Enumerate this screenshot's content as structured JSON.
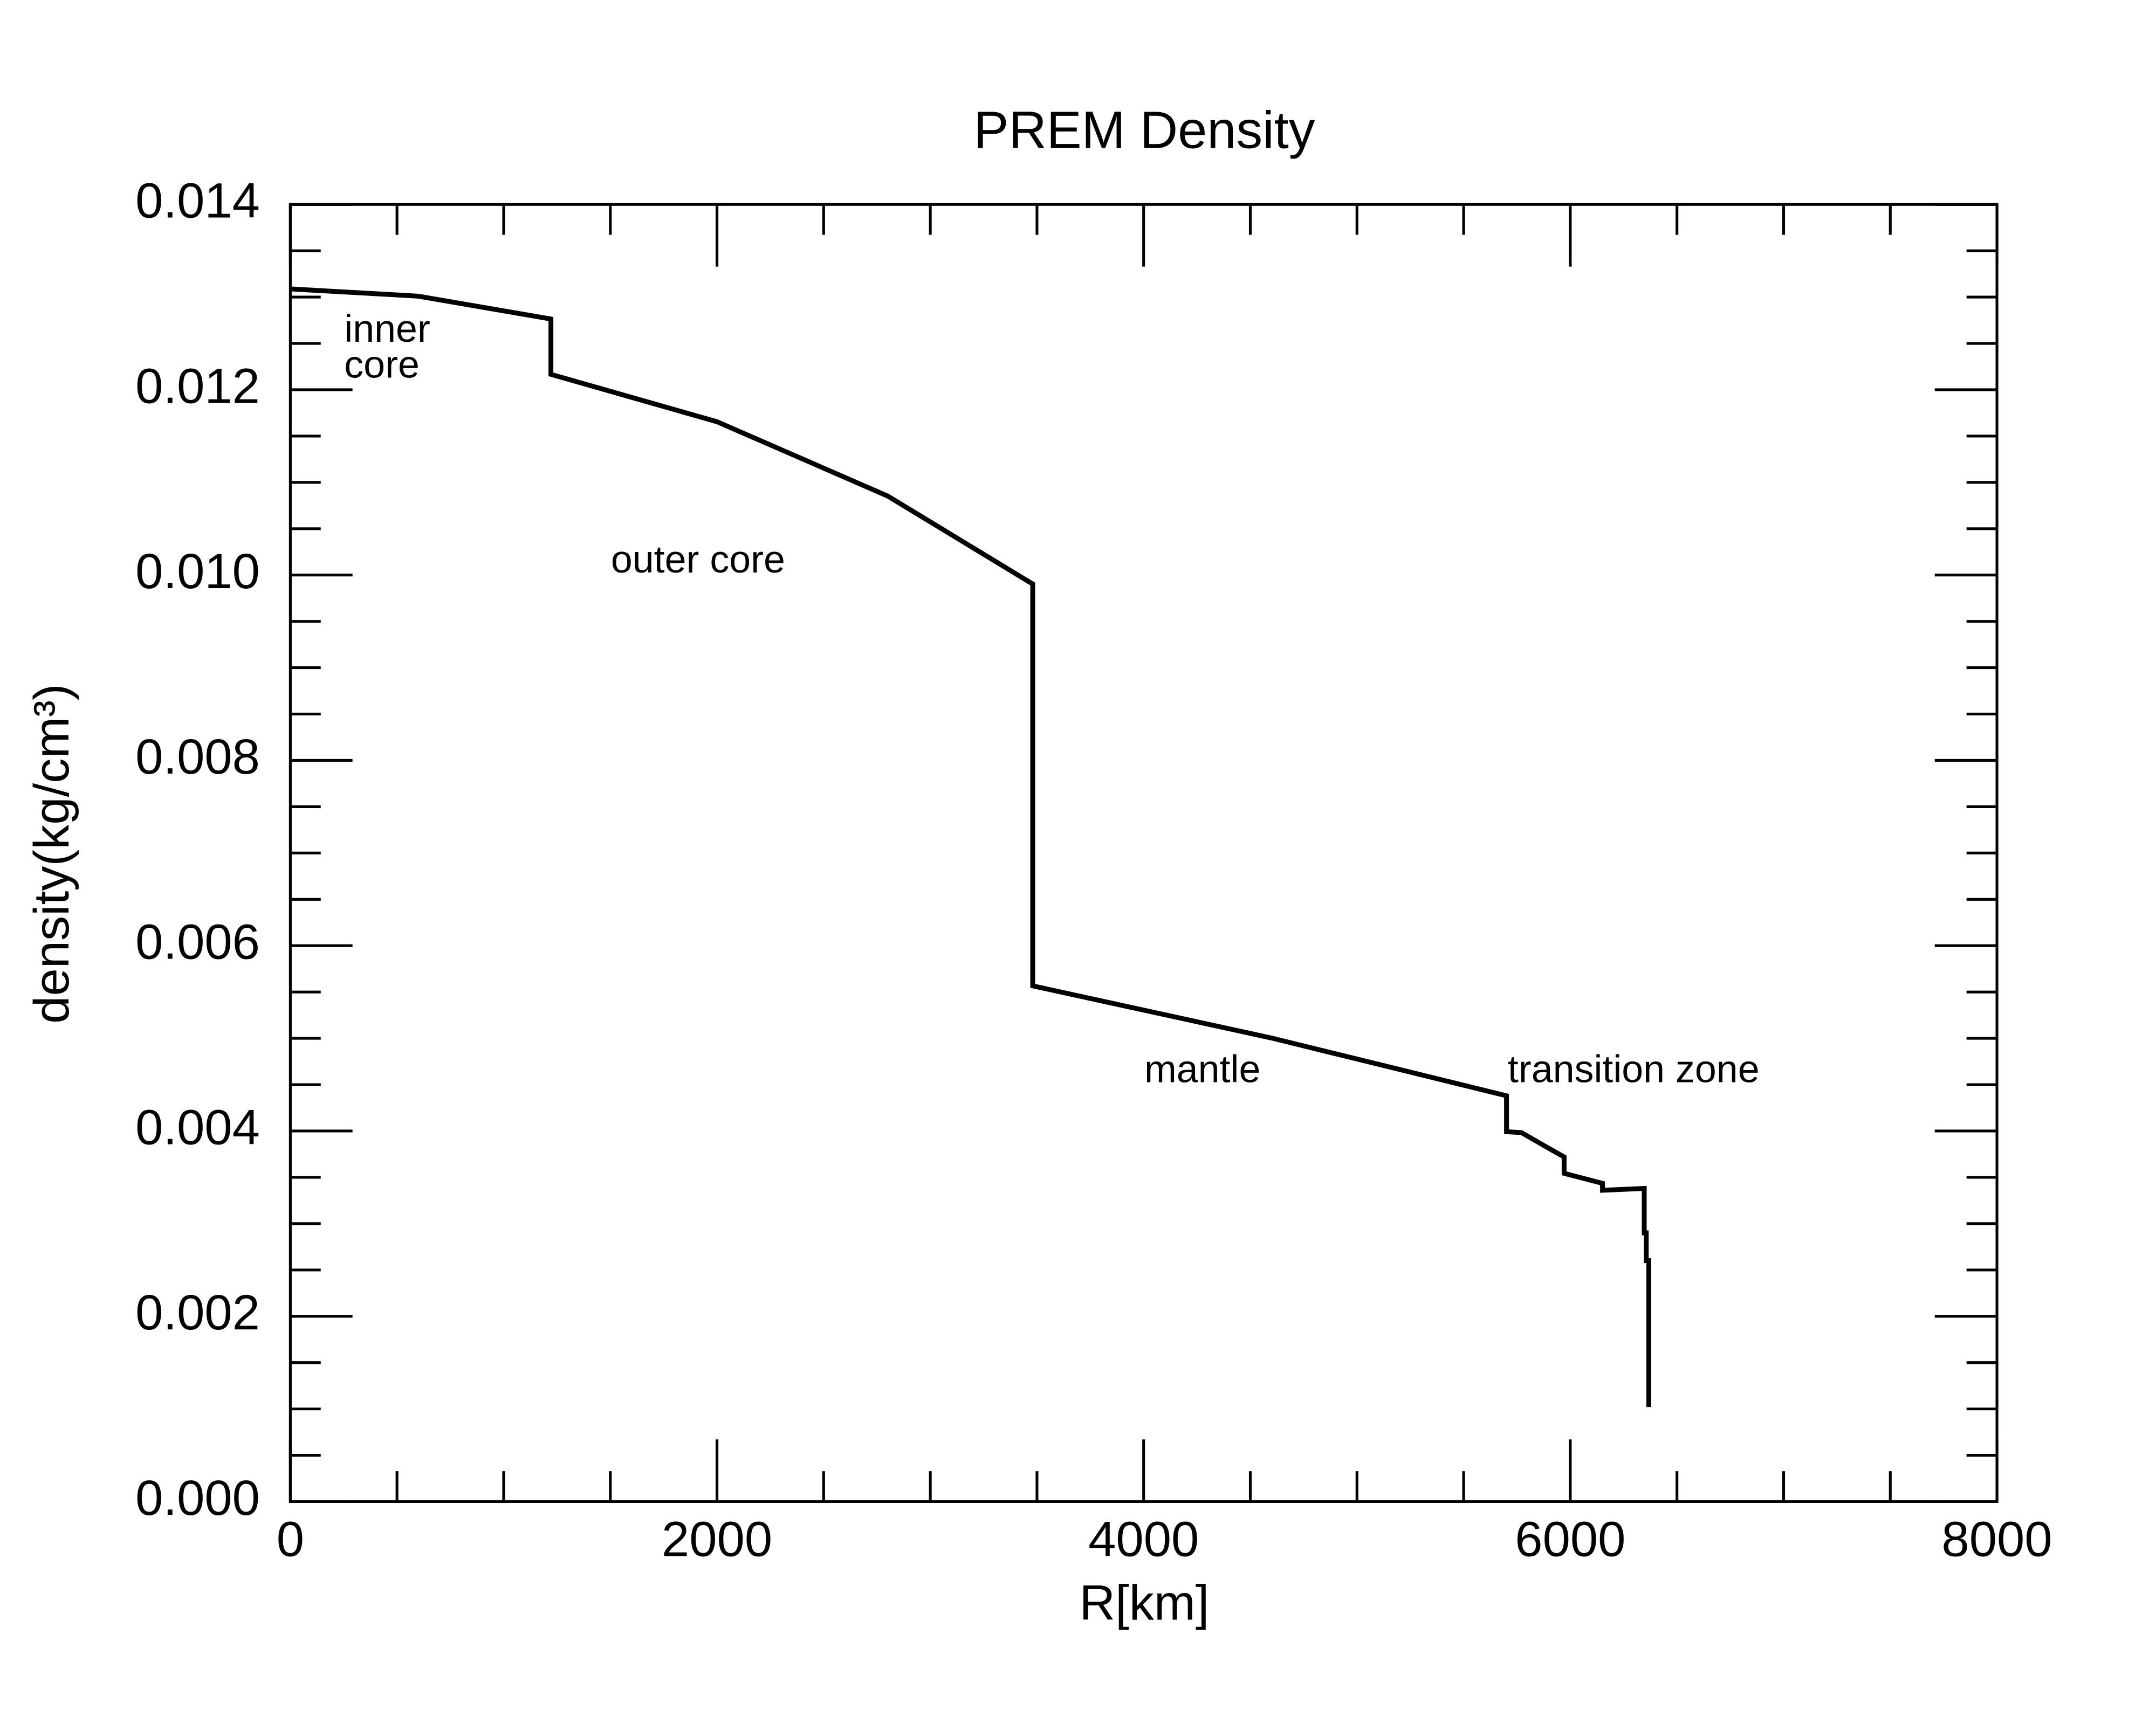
{
  "chart_data": {
    "type": "line",
    "title": "PREM Density",
    "xlabel": "R[km]",
    "ylabel": "density(kg/cm³)",
    "x": [
      0,
      600,
      1221.5,
      1221.5,
      2000,
      2800,
      3480,
      3480,
      4600,
      5701,
      5701,
      5771,
      5871,
      5971,
      5971,
      6151,
      6151,
      6346.6,
      6346.6,
      6356,
      6356,
      6368,
      6368
    ],
    "series": [
      {
        "name": "density",
        "color": "#000000",
        "values": [
          0.0130885,
          0.01301,
          0.0127636,
          0.0121664,
          0.011655,
          0.010853,
          0.0099036,
          0.005566,
          0.005003,
          0.00438,
          0.003992,
          0.003983,
          0.00385,
          0.00372,
          0.003543,
          0.003435,
          0.00336,
          0.00338,
          0.0029,
          0.0029,
          0.0026,
          0.0026,
          0.00102
        ]
      }
    ],
    "annotations": [
      "inner",
      "core",
      "outer core",
      "mantle",
      "transition zone"
    ],
    "xlim": [
      0,
      8000
    ],
    "xticks": [
      0,
      2000,
      4000,
      6000,
      8000
    ],
    "ylim": [
      0,
      0.014
    ],
    "yticks": [
      {
        "value": 0,
        "label": "0.000"
      },
      {
        "value": 0.002,
        "label": "0.002"
      },
      {
        "value": 0.004,
        "label": "0.004"
      },
      {
        "value": 0.006,
        "label": "0.006"
      },
      {
        "value": 0.008,
        "label": "0.008"
      },
      {
        "value": 0.01,
        "label": "0.010"
      },
      {
        "value": 0.012,
        "label": "0.012"
      },
      {
        "value": 0.014,
        "label": "0.014"
      }
    ],
    "grid": false
  }
}
